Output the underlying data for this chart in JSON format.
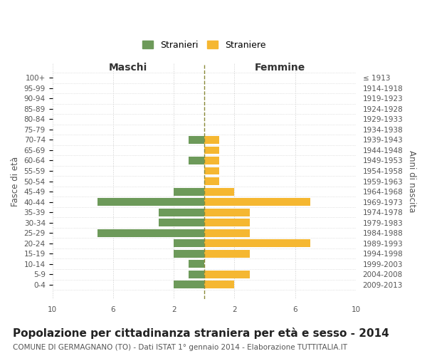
{
  "age_groups": [
    "100+",
    "95-99",
    "90-94",
    "85-89",
    "80-84",
    "75-79",
    "70-74",
    "65-69",
    "60-64",
    "55-59",
    "50-54",
    "45-49",
    "40-44",
    "35-39",
    "30-34",
    "25-29",
    "20-24",
    "15-19",
    "10-14",
    "5-9",
    "0-4"
  ],
  "birth_years": [
    "≤ 1913",
    "1914-1918",
    "1919-1923",
    "1924-1928",
    "1929-1933",
    "1934-1938",
    "1939-1943",
    "1944-1948",
    "1949-1953",
    "1954-1958",
    "1959-1963",
    "1964-1968",
    "1969-1973",
    "1974-1978",
    "1979-1983",
    "1984-1988",
    "1989-1993",
    "1994-1998",
    "1999-2003",
    "2004-2008",
    "2009-2013"
  ],
  "males": [
    0,
    0,
    0,
    0,
    0,
    0,
    1,
    0,
    1,
    0,
    0,
    2,
    7,
    3,
    3,
    7,
    2,
    2,
    1,
    1,
    2
  ],
  "females": [
    0,
    0,
    0,
    0,
    0,
    0,
    1,
    1,
    1,
    1,
    1,
    2,
    7,
    3,
    3,
    3,
    7,
    3,
    0,
    3,
    2
  ],
  "male_color": "#6d9a5a",
  "female_color": "#f5b731",
  "male_label": "Stranieri",
  "female_label": "Straniere",
  "title": "Popolazione per cittadinanza straniera per età e sesso - 2014",
  "subtitle": "COMUNE DI GERMAGNANO (TO) - Dati ISTAT 1° gennaio 2014 - Elaborazione TUTTITALIA.IT",
  "ylabel_left": "Fasce di età",
  "ylabel_right": "Anni di nascita",
  "label_maschi": "Maschi",
  "label_femmine": "Femmine",
  "xlim": 10,
  "background_color": "#ffffff",
  "grid_color": "#cccccc",
  "center_line_color": "#8b8b3a",
  "tick_fontsize": 7.5,
  "label_fontsize": 10,
  "title_fontsize": 11,
  "subtitle_fontsize": 7.5,
  "ylabel_fontsize": 8.5
}
